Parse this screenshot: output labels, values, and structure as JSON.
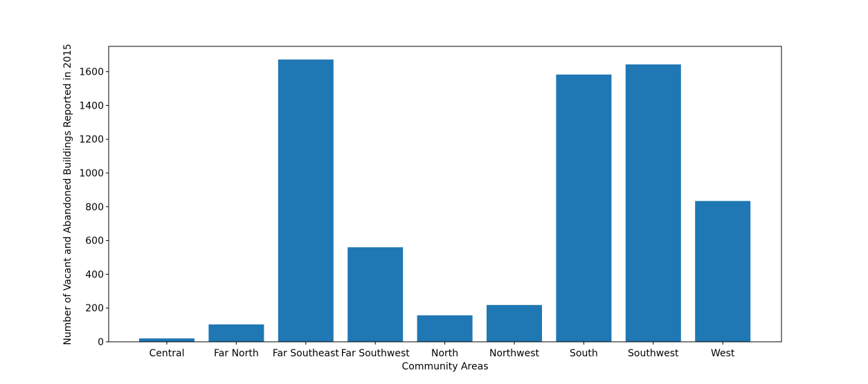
{
  "chart_data": {
    "type": "bar",
    "title": "",
    "xlabel": "Community Areas",
    "ylabel": "Number of Vacant and Abandoned Buildings Reported in 2015",
    "categories": [
      "Central",
      "Far North",
      "Far Southeast",
      "Far Southwest",
      "North",
      "Northwest",
      "South",
      "Southwest",
      "West"
    ],
    "values": [
      20,
      103,
      1672,
      560,
      157,
      218,
      1583,
      1643,
      834
    ],
    "ylim": [
      0,
      1750
    ],
    "yticks": [
      0,
      200,
      400,
      600,
      800,
      1000,
      1200,
      1400,
      1600
    ],
    "bar_color": "#1f77b4",
    "grid": false,
    "legend": "none"
  }
}
